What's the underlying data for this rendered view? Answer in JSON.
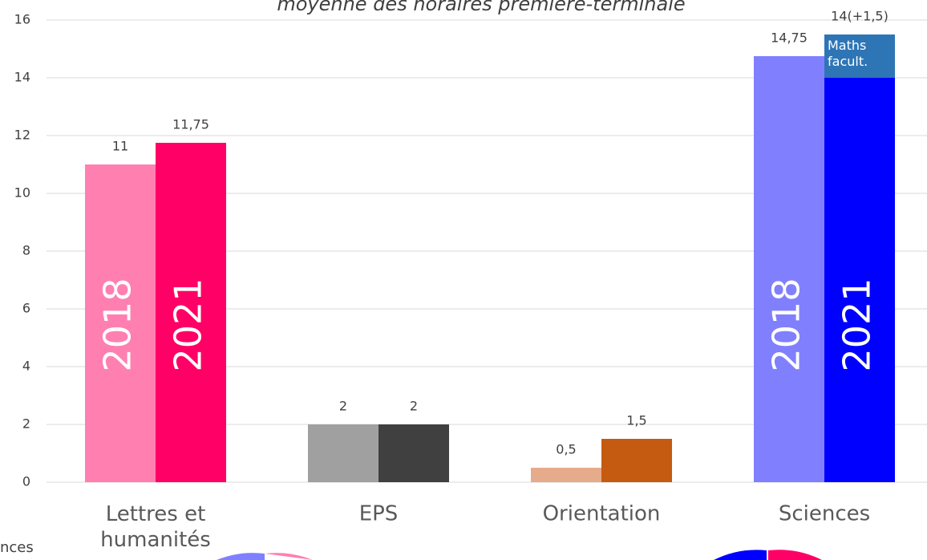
{
  "chart_data": {
    "type": "bar",
    "title": "moyenne des horaires première-terminale",
    "categories": [
      "Lettres et humanités",
      "EPS",
      "Orientation",
      "Sciences"
    ],
    "series": [
      {
        "name": "2018",
        "colors": [
          "#ff7fb1",
          "#a0a0a0",
          "#e6ab8a",
          "#8080ff"
        ],
        "values": [
          11,
          2,
          0.5,
          14.75
        ],
        "value_labels": [
          "11",
          "2",
          "0,5",
          "14,75"
        ]
      },
      {
        "name": "2021",
        "colors": [
          "#ff0066",
          "#404040",
          "#c55a11",
          "#0000ff"
        ],
        "values": [
          11.75,
          2,
          1.5,
          14
        ],
        "value_labels": [
          "11,75",
          "2",
          "1,5",
          "14(+1,5)"
        ],
        "extra": [
          null,
          null,
          null,
          1.5
        ],
        "extra_label": "Maths facult.",
        "extra_color": "#2e75b6"
      }
    ],
    "name_in_bar": [
      true,
      false,
      false,
      true
    ],
    "ylim": [
      0,
      16
    ],
    "yticks": [
      0,
      2,
      4,
      6,
      8,
      10,
      12,
      14,
      16
    ],
    "grid": true,
    "fragment_text": "nces"
  }
}
